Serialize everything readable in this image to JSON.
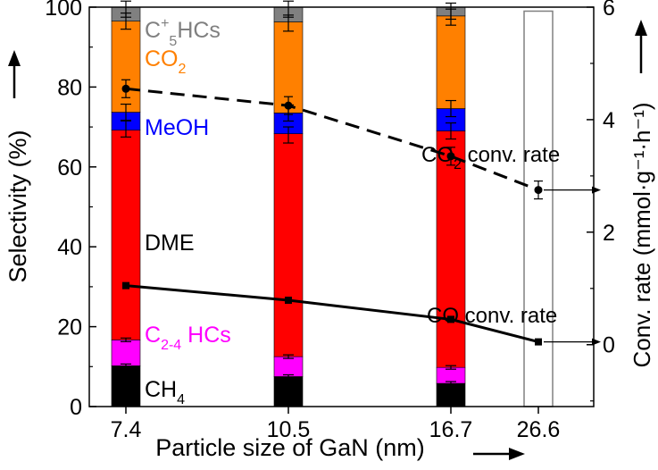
{
  "chart_data": {
    "type": "bar",
    "stacked": true,
    "xlabel": "Particle size of GaN (nm)",
    "ylabel_left": "Selectivity (%)",
    "ylabel_right": "Conv. rate (mmol·g⁻¹·h⁻¹)",
    "categories": [
      "7.4",
      "10.5",
      "16.7",
      "26.6"
    ],
    "ylim_left": [
      0,
      100
    ],
    "ylim_right": [
      -1.1,
      6.0
    ],
    "left_ticks": [
      0,
      20,
      40,
      60,
      80,
      100
    ],
    "right_ticks": [
      0,
      2,
      4,
      6
    ],
    "colors": {
      "CH4": "#000000",
      "C2-4 HCs": "#ff00ff",
      "DME": "#ff0000",
      "MeOH": "#0000ff",
      "CO2": "#ff8000",
      "C5+HCs": "#808080",
      "axis": "#000000",
      "empty_bar": "#808080"
    },
    "stack_series": [
      {
        "name": "CH4",
        "values": [
          10.2,
          7.5,
          5.8,
          0
        ]
      },
      {
        "name": "C2-4 HCs",
        "values": [
          6.5,
          5.0,
          4.0,
          0
        ]
      },
      {
        "name": "DME",
        "values": [
          52.5,
          55.8,
          59.2,
          0
        ]
      },
      {
        "name": "MeOH",
        "values": [
          4.5,
          5.2,
          5.6,
          0
        ]
      },
      {
        "name": "CO2",
        "values": [
          22.8,
          22.8,
          23.2,
          0
        ]
      },
      {
        "name": "C5+HCs",
        "values": [
          3.5,
          3.7,
          2.2,
          0
        ]
      }
    ],
    "error_bar_tops": [
      [
        10.2,
        16.7,
        69.5,
        73.7,
        96.5,
        99.5
      ],
      [
        7.5,
        12.5,
        68.0,
        73.5,
        96.0,
        99.5
      ],
      [
        5.8,
        9.8,
        69.0,
        74.6,
        97.5,
        99.0
      ]
    ],
    "empty_bar_category": "26.6",
    "empty_bar_top": 99.0,
    "line_series": [
      {
        "name": "CO2 conv. rate",
        "style": "dashed",
        "marker": "circle",
        "values": [
          4.55,
          4.25,
          3.35,
          2.75
        ]
      },
      {
        "name": "CO conv. rate",
        "style": "solid",
        "marker": "square",
        "values": [
          1.05,
          0.79,
          0.45,
          0.05
        ]
      }
    ],
    "stack_labels": [
      {
        "series": "CH4",
        "text": "CH",
        "sub": "4",
        "sup": ""
      },
      {
        "series": "C2-4 HCs",
        "text": "C",
        "sub": "2-4",
        "sup": "",
        "after": " HCs"
      },
      {
        "series": "DME",
        "text": "DME",
        "sub": "",
        "sup": ""
      },
      {
        "series": "MeOH",
        "text": "MeOH",
        "sub": "",
        "sup": ""
      },
      {
        "series": "CO2",
        "text": "CO",
        "sub": "2",
        "sup": ""
      },
      {
        "series": "C5+HCs",
        "text": "C",
        "sub": "5",
        "sup": "+",
        "after": "HCs"
      }
    ],
    "line_labels": {
      "co2": {
        "pre": "CO",
        "sub": "2",
        "post": " conv. rate"
      },
      "co": "CO conv. rate"
    }
  }
}
